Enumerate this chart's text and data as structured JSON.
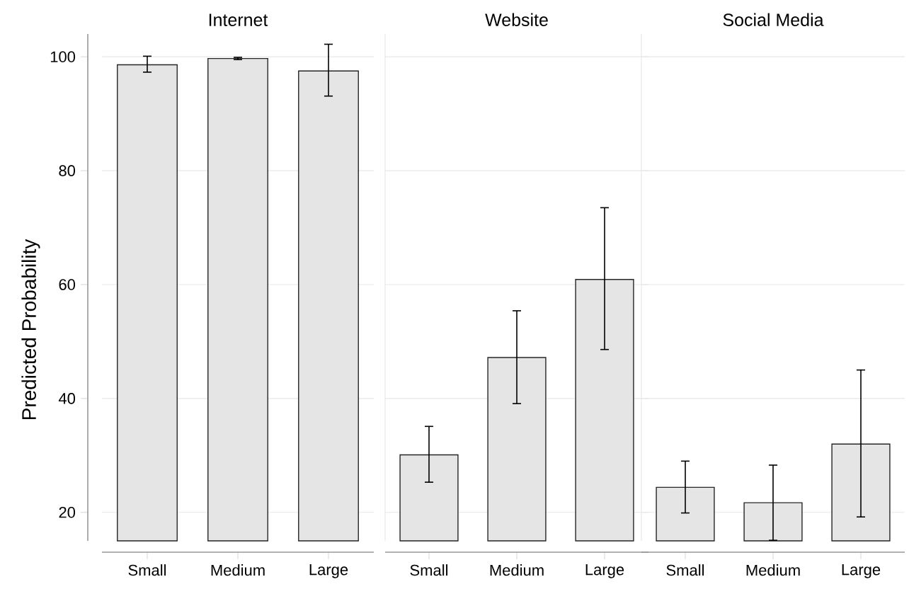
{
  "chart_data": [
    {
      "type": "bar",
      "title": "Internet",
      "ylabel": "Predicted Probability",
      "categories": [
        "Small",
        "Medium",
        "Large"
      ],
      "values": [
        98.6,
        99.7,
        97.5
      ],
      "errors": [
        [
          97.3,
          100.1
        ],
        [
          99.5,
          99.9
        ],
        [
          93.1,
          102.2
        ]
      ],
      "color": "#e5e5e5",
      "ylim": [
        15,
        104
      ],
      "yticks": [
        20,
        40,
        60,
        80,
        100
      ],
      "grid": "y"
    },
    {
      "type": "bar",
      "title": "Website",
      "categories": [
        "Small",
        "Medium",
        "Large"
      ],
      "values": [
        30.1,
        47.2,
        60.9
      ],
      "errors": [
        [
          25.3,
          35.1
        ],
        [
          39.1,
          55.4
        ],
        [
          48.6,
          73.5
        ]
      ],
      "color": "#e5e5e5",
      "ylim": [
        15,
        104
      ],
      "yticks": [
        20,
        40,
        60,
        80,
        100
      ],
      "grid": "y",
      "tick_labels": "x"
    },
    {
      "type": "bar",
      "title": "Social Media",
      "categories": [
        "Small",
        "Medium",
        "Large"
      ],
      "values": [
        24.4,
        21.7,
        32.0
      ],
      "errors": [
        [
          19.9,
          29.0
        ],
        [
          15.1,
          28.3
        ],
        [
          19.2,
          45.0
        ]
      ],
      "color": "#e5e5e5",
      "ylim": [
        15,
        104
      ],
      "yticks": [
        20,
        40,
        60,
        80,
        100
      ],
      "grid": "y",
      "tick_labels": "x"
    }
  ]
}
